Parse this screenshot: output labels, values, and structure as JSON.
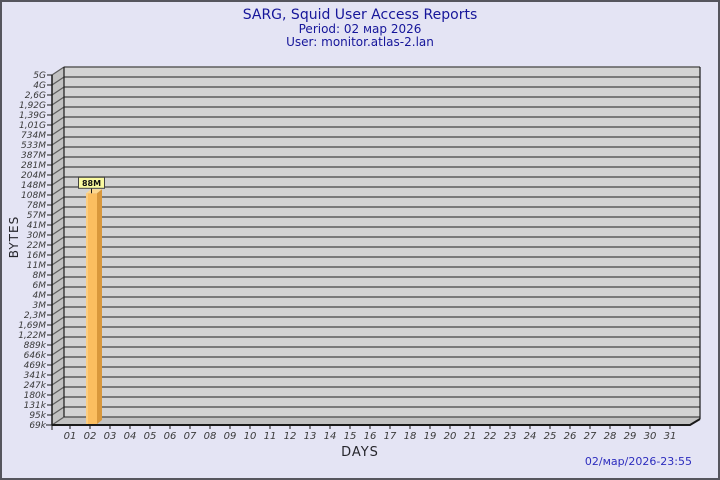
{
  "title": {
    "line1": "SARG, Squid User Access Reports",
    "line2": "Period: 02 мар 2026",
    "line3": "User: monitor.atlas-2.lan"
  },
  "footer": {
    "timestamp": "02/мар/2026-23:55"
  },
  "colors": {
    "background": "#E4E4F4",
    "border": "#55555D",
    "title_text": "#16169A",
    "timestamp_text": "#2D2DBE",
    "plot_band": "#D3D3D3",
    "gridline": "#5C5C5C",
    "wall": "#C2C2C2",
    "axis": "#1A1A1A",
    "tick_text": "#3A3A3A",
    "bar_face": "#FBBE60",
    "bar_edge_light": "#FDD48C",
    "bar_side": "#D9983C",
    "bar_top": "#FDD88F",
    "value_box_bg": "#FAFAA0",
    "value_box_border": "#444444",
    "value_text": "#111111"
  },
  "chart_data": {
    "type": "bar",
    "title": "SARG, Squid User Access Reports",
    "subtitle": "Period: 02 мар 2026",
    "user": "monitor.atlas-2.lan",
    "xlabel": "DAYS",
    "ylabel": "BYTES",
    "y_scale": "log",
    "grid": true,
    "x_categories": [
      "01",
      "02",
      "03",
      "04",
      "05",
      "06",
      "07",
      "08",
      "09",
      "10",
      "11",
      "12",
      "13",
      "14",
      "15",
      "16",
      "17",
      "18",
      "19",
      "20",
      "21",
      "22",
      "23",
      "24",
      "25",
      "26",
      "27",
      "28",
      "29",
      "30",
      "31"
    ],
    "y_ticks": [
      {
        "label": "5G",
        "value": 5000000000
      },
      {
        "label": "4G",
        "value": 4000000000
      },
      {
        "label": "2,6G",
        "value": 2600000000
      },
      {
        "label": "1,92G",
        "value": 1920000000
      },
      {
        "label": "1,39G",
        "value": 1390000000
      },
      {
        "label": "1,01G",
        "value": 1010000000
      },
      {
        "label": "734M",
        "value": 734000000
      },
      {
        "label": "533M",
        "value": 533000000
      },
      {
        "label": "387M",
        "value": 387000000
      },
      {
        "label": "281M",
        "value": 281000000
      },
      {
        "label": "204M",
        "value": 204000000
      },
      {
        "label": "148M",
        "value": 148000000
      },
      {
        "label": "108M",
        "value": 108000000
      },
      {
        "label": "78M",
        "value": 78000000
      },
      {
        "label": "57M",
        "value": 57000000
      },
      {
        "label": "41M",
        "value": 41000000
      },
      {
        "label": "30M",
        "value": 30000000
      },
      {
        "label": "22M",
        "value": 22000000
      },
      {
        "label": "16M",
        "value": 16000000
      },
      {
        "label": "11M",
        "value": 11000000
      },
      {
        "label": "8M",
        "value": 8000000
      },
      {
        "label": "6M",
        "value": 6000000
      },
      {
        "label": "4M",
        "value": 4000000
      },
      {
        "label": "3M",
        "value": 3000000
      },
      {
        "label": "2,3M",
        "value": 2300000
      },
      {
        "label": "1,69M",
        "value": 1690000
      },
      {
        "label": "1,22M",
        "value": 1220000
      },
      {
        "label": "889k",
        "value": 889000
      },
      {
        "label": "646k",
        "value": 646000
      },
      {
        "label": "469k",
        "value": 469000
      },
      {
        "label": "341k",
        "value": 341000
      },
      {
        "label": "247k",
        "value": 247000
      },
      {
        "label": "180k",
        "value": 180000
      },
      {
        "label": "131k",
        "value": 131000
      },
      {
        "label": "95k",
        "value": 95000
      },
      {
        "label": "69k",
        "value": 69000
      }
    ],
    "bars": [
      {
        "day": "02",
        "value": 88000000,
        "label": "88M"
      }
    ]
  }
}
